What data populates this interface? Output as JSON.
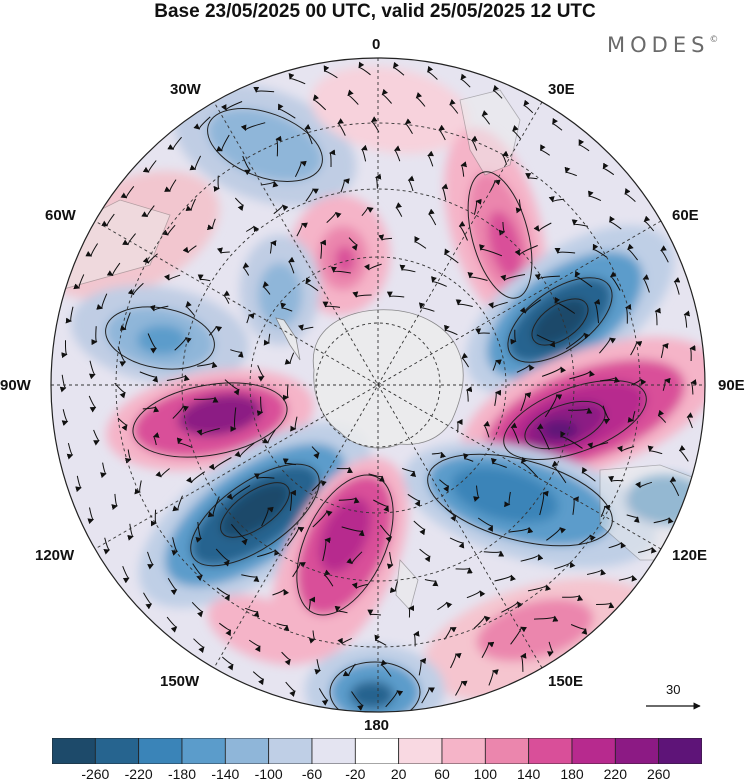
{
  "title": "Base 23/05/2025 00 UTC, valid 25/05/2025 12 UTC",
  "brand": "MODES",
  "brand_mark": "©",
  "longitude_labels": {
    "lon_0": "0",
    "lon_30e": "30E",
    "lon_60e": "60E",
    "lon_90e": "90E",
    "lon_120e": "120E",
    "lon_150e": "150E",
    "lon_180": "180",
    "lon_150w": "150W",
    "lon_120w": "120W",
    "lon_90w": "90W",
    "lon_60w": "60W",
    "lon_30w": "30W"
  },
  "reference_vector": {
    "label": "30"
  },
  "colorbar": {
    "labels": [
      "-260",
      "-220",
      "-180",
      "-140",
      "-100",
      "-60",
      "-20",
      "20",
      "60",
      "100",
      "140",
      "180",
      "220",
      "260"
    ],
    "colors": [
      "#1d4a6a",
      "#26648f",
      "#3a84b8",
      "#5b9ccb",
      "#8fb6d9",
      "#bfcfe6",
      "#e4e4f1",
      "#ffffff",
      "#f9d9e2",
      "#f5b4c8",
      "#eb86ad",
      "#d94f99",
      "#b72a8e",
      "#8c1a84",
      "#5e1478"
    ]
  },
  "colors": {
    "land": "#ececec",
    "grid": "#333333"
  }
}
